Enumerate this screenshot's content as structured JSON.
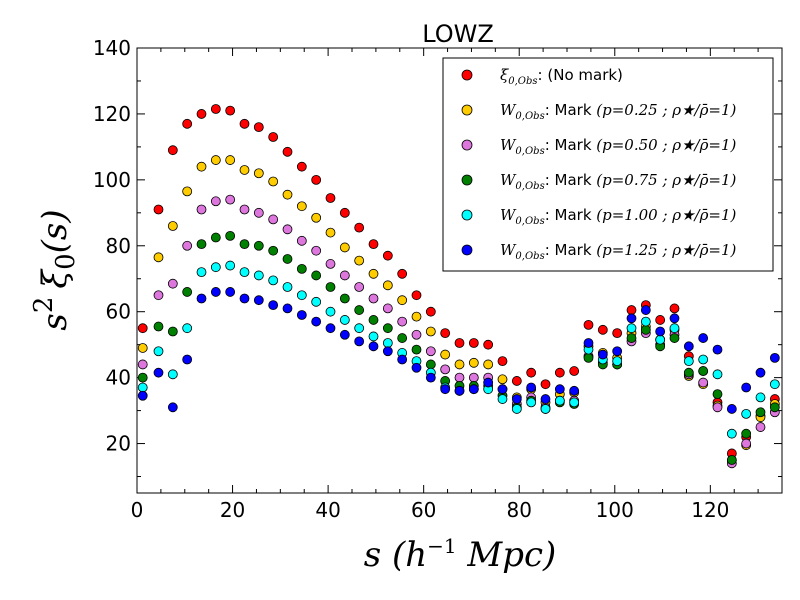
{
  "chart_data": {
    "type": "scatter",
    "title": "LOWZ",
    "xlabel": "s (h⁻¹ Mpc)",
    "ylabel": "s² ξ₀(s)",
    "xlim": [
      0,
      135
    ],
    "ylim": [
      5,
      140
    ],
    "xticks": [
      0,
      20,
      40,
      60,
      80,
      100,
      120
    ],
    "yticks": [
      20,
      40,
      60,
      80,
      100,
      120,
      140
    ],
    "legend_position": "top-right",
    "x": [
      1.2,
      4.5,
      7.5,
      10.5,
      13.5,
      16.5,
      19.5,
      22.5,
      25.5,
      28.5,
      31.5,
      34.5,
      37.5,
      40.5,
      43.5,
      46.5,
      49.5,
      52.5,
      55.5,
      58.5,
      61.5,
      64.5,
      67.5,
      70.5,
      73.5,
      76.5,
      79.5,
      82.5,
      85.5,
      88.5,
      91.5,
      94.5,
      97.5,
      100.5,
      103.5,
      106.5,
      109.5,
      112.5,
      115.5,
      118.5,
      121.5,
      124.5,
      127.5,
      130.5,
      133.5
    ],
    "series": [
      {
        "name": "ξ0,Obs: (No mark)",
        "color": "#ff0000",
        "values": [
          55,
          91,
          109,
          117,
          120,
          121.5,
          121,
          117,
          116,
          113,
          108.5,
          104,
          100,
          94.5,
          90,
          85.5,
          80.5,
          77,
          71.5,
          65,
          60,
          53.5,
          50.5,
          50.5,
          50,
          45,
          39,
          41.5,
          38,
          41.5,
          42,
          56,
          54.5,
          53.5,
          60.5,
          62,
          57.5,
          61,
          46.5,
          42,
          32.5,
          17,
          22,
          28.5,
          33.5
        ]
      },
      {
        "name": "W0,Obs: Mark (p=0.25 ; ρ★/ρ̄=1)",
        "color": "#ffcc00",
        "values": [
          49,
          76.5,
          86,
          96.5,
          104,
          106,
          106,
          103,
          102,
          99.5,
          95.5,
          92,
          88.5,
          84,
          79.5,
          75.5,
          71.5,
          68,
          63.5,
          58.5,
          54,
          47,
          44,
          44.5,
          44,
          39.5,
          34,
          36.5,
          32.5,
          35,
          35.5,
          49.5,
          47.5,
          46,
          53.5,
          55.5,
          51.5,
          54.5,
          40.5,
          38,
          31.5,
          15,
          19.5,
          28,
          32
        ]
      },
      {
        "name": "W0,Obs: Mark (p=0.50 ; ρ★/ρ̄=1)",
        "color": "#dd77dd",
        "values": [
          44,
          65,
          68.5,
          80,
          91,
          93.5,
          94,
          91,
          90,
          88,
          85,
          81.5,
          78.5,
          74.5,
          71,
          67.5,
          64,
          61,
          57,
          53,
          48,
          42.5,
          40,
          40,
          40,
          36.5,
          32,
          34,
          31,
          33,
          33,
          46.5,
          44.5,
          44,
          51,
          53.5,
          50,
          53,
          41,
          38.5,
          31,
          14,
          20,
          25,
          29.5
        ]
      },
      {
        "name": "W0,Obs: Mark (p=0.75 ; ρ★/ρ̄=1)",
        "color": "#008000",
        "values": [
          40,
          55.5,
          54,
          66,
          80.5,
          82.5,
          83,
          80.5,
          80,
          78.5,
          76,
          73,
          71,
          67.5,
          64,
          60.5,
          57.5,
          55,
          52,
          48.5,
          44,
          39,
          37.5,
          37.5,
          37.5,
          34.5,
          31,
          33,
          30.5,
          32.5,
          32,
          46,
          44,
          44,
          52,
          54.5,
          49.5,
          52,
          41.5,
          42,
          35,
          15,
          23,
          29.5,
          31
        ]
      },
      {
        "name": "W0,Obs: Mark (p=1.00 ; ρ★/ρ̄=1)",
        "color": "#00ffff",
        "values": [
          37,
          48,
          41,
          55,
          72,
          73.5,
          74,
          72,
          71,
          69.5,
          67.5,
          65,
          63,
          60,
          57.5,
          55,
          52.5,
          50.5,
          47.5,
          45,
          41.5,
          37,
          36,
          36.5,
          36.5,
          33.5,
          30.5,
          32.5,
          30.5,
          33,
          32.5,
          48.5,
          45.5,
          45,
          55,
          57,
          51.5,
          55,
          45,
          45.5,
          41,
          23,
          29,
          34,
          38
        ]
      },
      {
        "name": "W0,Obs: Mark (p=1.25 ; ρ★/ρ̄=1)",
        "color": "#0000ff",
        "values": [
          34.5,
          41.5,
          31,
          45.5,
          64,
          66,
          66,
          64,
          63.5,
          62,
          61,
          59,
          57,
          55,
          53,
          51,
          49.5,
          48,
          45.5,
          43,
          40,
          36.5,
          36,
          36.5,
          38.5,
          36.5,
          33.5,
          37,
          33.5,
          36.5,
          36,
          50.5,
          47,
          48,
          58,
          60.5,
          54,
          58,
          49.5,
          52,
          48.5,
          30.5,
          37,
          41.5,
          46
        ]
      }
    ]
  },
  "legend": [
    {
      "math": "ξ",
      "sub": "0,Obs",
      "label": ": (No mark)",
      "param": ""
    },
    {
      "math": "W",
      "sub": "0,Obs",
      "label": ": Mark ",
      "param": "(p=0.25 ; ρ★/ρ̄=1)"
    },
    {
      "math": "W",
      "sub": "0,Obs",
      "label": ": Mark ",
      "param": "(p=0.50 ; ρ★/ρ̄=1)"
    },
    {
      "math": "W",
      "sub": "0,Obs",
      "label": ": Mark ",
      "param": "(p=0.75 ; ρ★/ρ̄=1)"
    },
    {
      "math": "W",
      "sub": "0,Obs",
      "label": ": Mark ",
      "param": "(p=1.00 ; ρ★/ρ̄=1)"
    },
    {
      "math": "W",
      "sub": "0,Obs",
      "label": ": Mark ",
      "param": "(p=1.25 ; ρ★/ρ̄=1)"
    }
  ]
}
